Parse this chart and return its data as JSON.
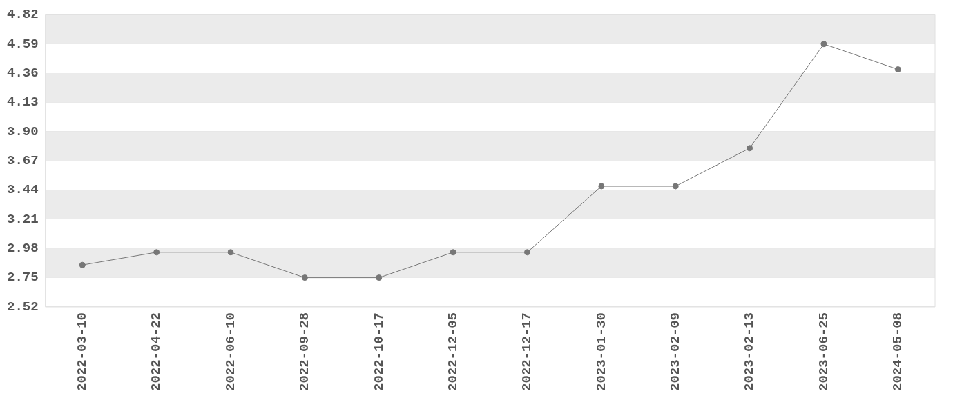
{
  "chart_data": {
    "type": "line",
    "categories": [
      "2022-03-10",
      "2022-04-22",
      "2022-06-10",
      "2022-09-28",
      "2022-10-17",
      "2022-12-05",
      "2022-12-17",
      "2023-01-30",
      "2023-02-09",
      "2023-02-13",
      "2023-06-25",
      "2024-05-08"
    ],
    "series": [
      {
        "color": "#777777",
        "values": [
          2.85,
          2.95,
          2.95,
          2.75,
          2.75,
          2.95,
          2.95,
          3.47,
          3.47,
          3.77,
          4.59,
          4.39
        ]
      }
    ],
    "ylim": [
      2.52,
      4.82
    ],
    "yticks": [
      2.52,
      2.75,
      2.98,
      3.21,
      3.44,
      3.67,
      {
        "value": 3.9,
        "label": "3.90"
      },
      4.13,
      4.36,
      4.59,
      4.82
    ],
    "grid": "y",
    "marker": "circle",
    "line_style": "solid"
  }
}
